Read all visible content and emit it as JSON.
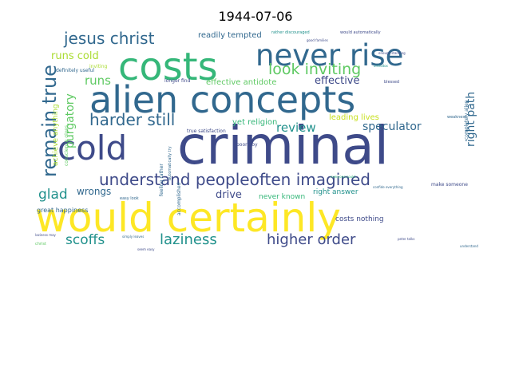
{
  "chart_data": {
    "type": "wordcloud",
    "title": "1944-07-06",
    "colormap": "viridis",
    "words": [
      {
        "text": "criminal",
        "color": "#3e4a89"
      },
      {
        "text": "would certainly",
        "color": "#fde725"
      },
      {
        "text": "alien concepts",
        "color": "#31688e"
      },
      {
        "text": "costs",
        "color": "#35b779"
      },
      {
        "text": "never rise",
        "color": "#31688e"
      },
      {
        "text": "cold",
        "color": "#3e4a89"
      },
      {
        "text": "remain true",
        "color": "#31688e"
      },
      {
        "text": "understand peopleoften imagined",
        "color": "#3e4a89"
      },
      {
        "text": "jesus christ",
        "color": "#31688e"
      },
      {
        "text": "harder still",
        "color": "#31688e"
      },
      {
        "text": "look inviting",
        "color": "#5ec962"
      },
      {
        "text": "laziness",
        "color": "#21918c"
      },
      {
        "text": "higher order",
        "color": "#3e4a89"
      },
      {
        "text": "glad",
        "color": "#21918c"
      },
      {
        "text": "scoffs",
        "color": "#21918c"
      },
      {
        "text": "runs",
        "color": "#5ec962"
      },
      {
        "text": "review",
        "color": "#21918c"
      },
      {
        "text": "effective",
        "color": "#3e4a89"
      },
      {
        "text": "speculator",
        "color": "#31688e"
      },
      {
        "text": "right path",
        "color": "#31688e"
      },
      {
        "text": "runs cold",
        "color": "#aadc32"
      },
      {
        "text": "purgatory",
        "color": "#5ec962"
      },
      {
        "text": "drive",
        "color": "#3e4a89"
      },
      {
        "text": "wrongs",
        "color": "#31688e"
      },
      {
        "text": "achieve anything",
        "color": "#aadc32"
      },
      {
        "text": "yet religion",
        "color": "#35b779"
      },
      {
        "text": "effective antidote",
        "color": "#5ec962"
      },
      {
        "text": "readily tempted",
        "color": "#31688e"
      },
      {
        "text": "leading lives",
        "color": "#c8e020"
      },
      {
        "text": "never known",
        "color": "#35b779"
      },
      {
        "text": "right answer",
        "color": "#21918c"
      },
      {
        "text": "great happiness",
        "color": "#31688e"
      },
      {
        "text": "costs nothing",
        "color": "#3e4a89"
      },
      {
        "text": "definitely useful",
        "color": "#31688e"
      },
      {
        "text": "inviting",
        "color": "#aadc32"
      },
      {
        "text": "conscience gives",
        "color": "#5ec962"
      },
      {
        "text": "rather discouraged",
        "color": "#21918c"
      },
      {
        "text": "would automatically",
        "color": "#3e4a89"
      },
      {
        "text": "longer find",
        "color": "#3e4a89"
      },
      {
        "text": "true satisfaction",
        "color": "#3e4a89"
      },
      {
        "text": "completely alien",
        "color": "#31688e"
      },
      {
        "text": "feeling rather",
        "color": "#31688e"
      },
      {
        "text": "automatically try",
        "color": "#31688e"
      },
      {
        "text": "accomplished",
        "color": "#31688e"
      },
      {
        "text": "poor boy",
        "color": "#3e4a89"
      },
      {
        "text": "make someone",
        "color": "#3e4a89"
      },
      {
        "text": "easy look",
        "color": "#31688e"
      },
      {
        "text": "good families",
        "color": "#3e4a89"
      },
      {
        "text": "everyone could",
        "color": "#35b779"
      },
      {
        "text": "enough standing",
        "color": "#3e4a89"
      },
      {
        "text": "orthodox",
        "color": "#21918c"
      },
      {
        "text": "blessed",
        "color": "#3e4a89"
      },
      {
        "text": "weakness",
        "color": "#31688e"
      },
      {
        "text": "christ",
        "color": "#5ec962"
      },
      {
        "text": "laziness may",
        "color": "#3e4a89"
      },
      {
        "text": "seem easy",
        "color": "#3e4a89"
      },
      {
        "text": "simply leaves",
        "color": "#31688e"
      },
      {
        "text": "peter talks",
        "color": "#3e4a89"
      },
      {
        "text": "understand",
        "color": "#31688e"
      },
      {
        "text": "confide everything",
        "color": "#31688e"
      }
    ]
  }
}
